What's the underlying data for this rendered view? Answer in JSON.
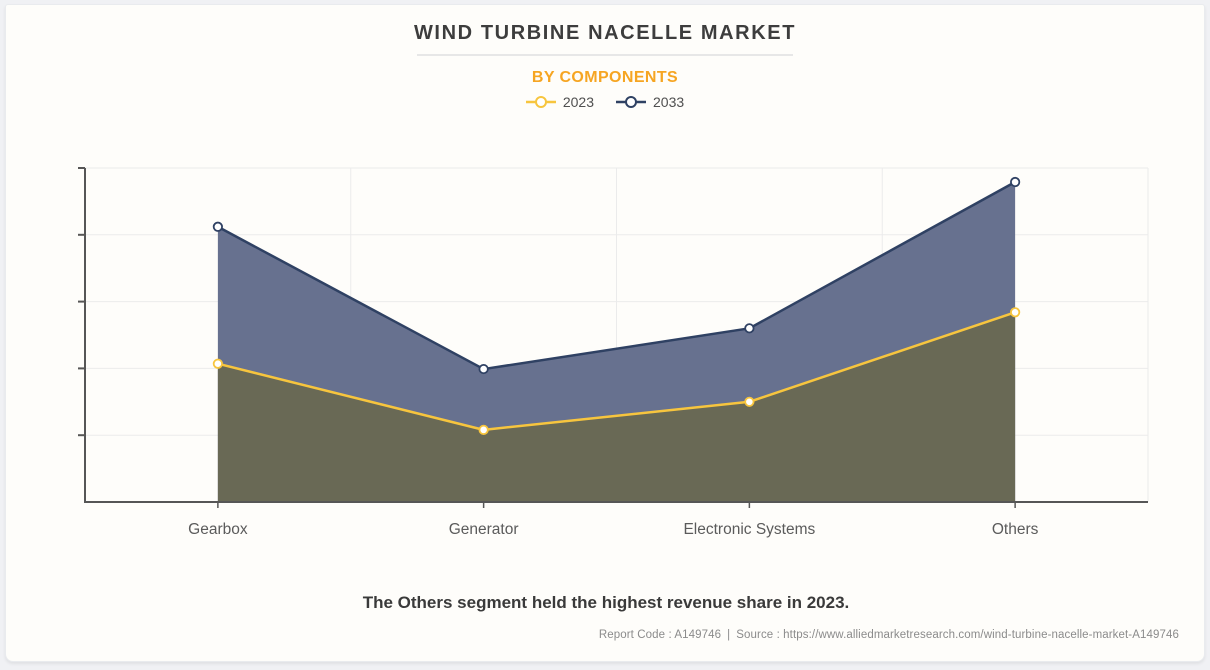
{
  "header": {
    "title": "WIND TURBINE NACELLE MARKET",
    "subtitle": "BY COMPONENTS",
    "subtitle_color": "#F6A522"
  },
  "legend": {
    "items": [
      {
        "label": "2023",
        "color": "#F7C53E"
      },
      {
        "label": "2033",
        "color": "#2F4163"
      }
    ]
  },
  "chart_data": {
    "type": "area",
    "title": "WIND TURBINE NACELLE MARKET",
    "subtitle": "BY COMPONENTS",
    "categories": [
      "Gearbox",
      "Generator",
      "Electronic Systems",
      "Others"
    ],
    "series": [
      {
        "name": "2023",
        "values": [
          2.07,
          1.08,
          1.5,
          2.84
        ],
        "line_color": "#F7C53E",
        "fill_color": "#696955",
        "marker_fill": "#FFFFFF"
      },
      {
        "name": "2033",
        "values": [
          4.12,
          1.99,
          2.6,
          4.79
        ],
        "line_color": "#2F4163",
        "fill_color": "#67718F",
        "marker_fill": "#FFFFFF"
      }
    ],
    "xlabel": "",
    "ylabel": "",
    "ylim": [
      0,
      5
    ],
    "y_tick_step": 1,
    "y_tick_labels": [],
    "grid": true,
    "legend_position": "top",
    "axis_color": "#565656",
    "gridline_color": "#EBEBEB",
    "x_label_color": "#5B5B5B"
  },
  "footer": {
    "note": "The Others segment held the highest revenue share in 2023.",
    "report_code": "Report Code : A149746",
    "separator": "|",
    "source": "Source : https://www.alliedmarketresearch.com/wind-turbine-nacelle-market-A149746"
  }
}
